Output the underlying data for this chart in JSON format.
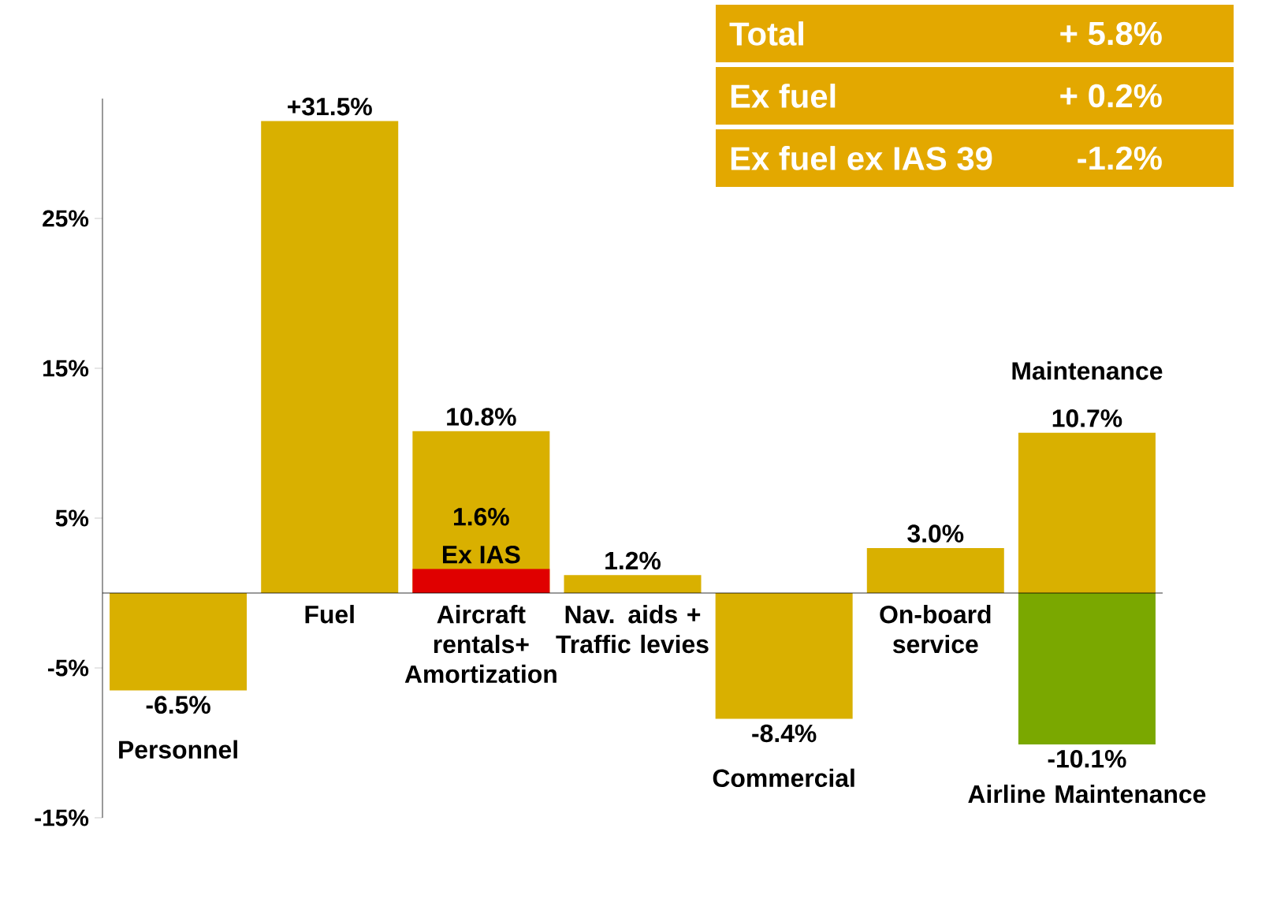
{
  "chart_data": {
    "type": "bar",
    "categories": [
      "Personnel",
      "Fuel",
      "Aircraft rentals+ Amortization",
      "Nav. aids + Traffic levies",
      "Commercial",
      "On-board service",
      "Maintenance"
    ],
    "series": [
      {
        "color": "#d9b000",
        "values": [
          -6.5,
          31.5,
          10.8,
          1.2,
          -8.4,
          3.0,
          10.7
        ],
        "value_labels": [
          "-6.5%",
          "+31.5%",
          "10.8%",
          "1.2%",
          "-8.4%",
          "3.0%",
          "10.7%"
        ]
      },
      {
        "name": "Ex IAS",
        "color": "#e00000",
        "values": [
          null,
          null,
          1.6,
          null,
          null,
          null,
          null
        ],
        "value_labels": [
          null,
          null,
          "1.6%",
          null,
          null,
          null,
          null
        ]
      },
      {
        "name": "Airline Maintenance",
        "color": "#7aa800",
        "values": [
          null,
          null,
          null,
          null,
          null,
          null,
          -10.1
        ],
        "value_labels": [
          null,
          null,
          null,
          null,
          null,
          null,
          "-10.1%"
        ]
      }
    ],
    "ylim": [
      -15,
      33
    ],
    "yticks": [
      {
        "value": -15,
        "label": "-15%"
      },
      {
        "value": -5,
        "label": "-5%"
      },
      {
        "value": 5,
        "label": "5%"
      },
      {
        "value": 15,
        "label": "15%"
      },
      {
        "value": 25,
        "label": "25%"
      }
    ],
    "annotations": [
      "Total",
      "+ 5.8%",
      "Ex fuel",
      "+ 0.2%",
      "Ex fuel ex IAS 39",
      "-1.2%"
    ]
  }
}
